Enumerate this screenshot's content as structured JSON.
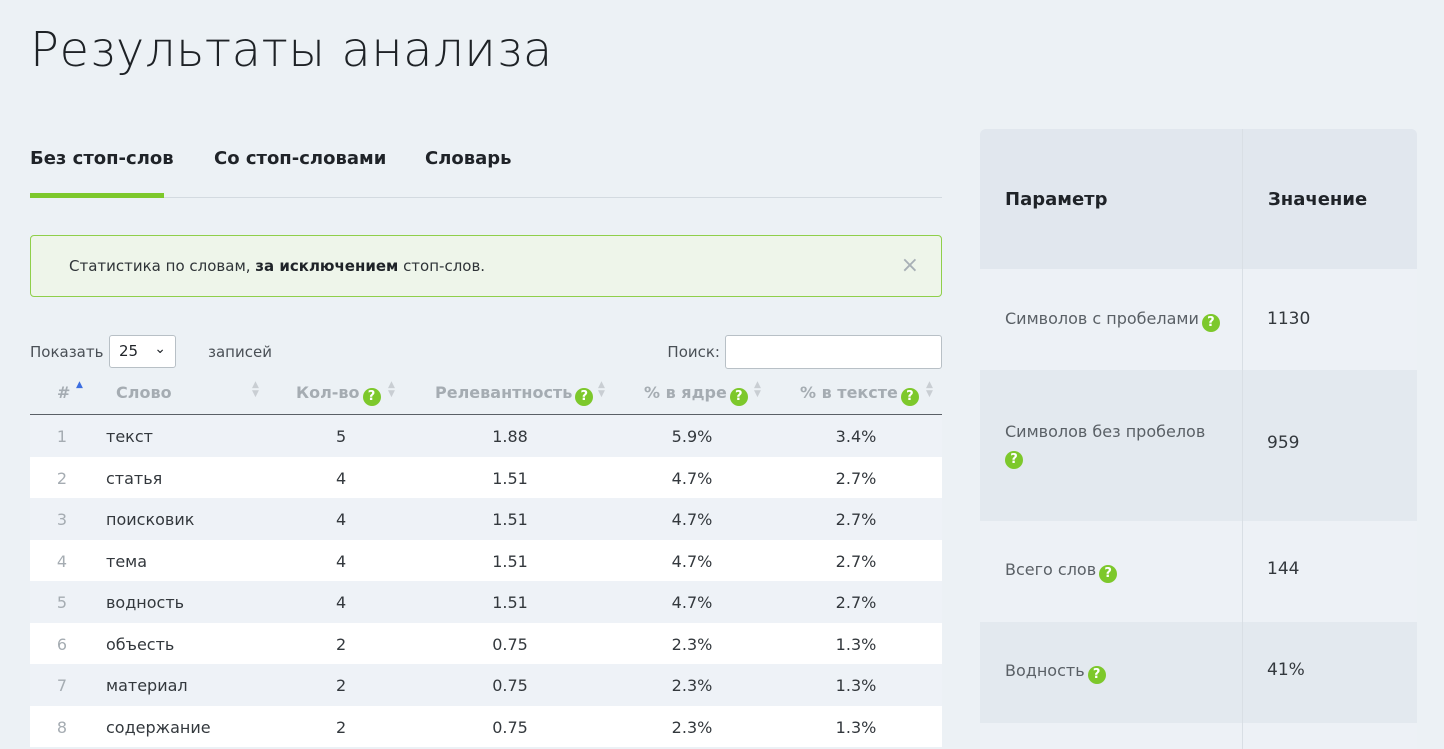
{
  "page_title": "Результаты анализа",
  "tabs": [
    {
      "label": "Без стоп-слов"
    },
    {
      "label": "Со стоп-словами"
    },
    {
      "label": "Словарь"
    }
  ],
  "alert": {
    "prefix": "Статистика по словам, ",
    "bold": "за исключением",
    "suffix": " стоп-слов.",
    "close_icon": "×"
  },
  "controls": {
    "show_label": "Показать",
    "page_size": "25",
    "records_label": "записей",
    "search_label": "Поиск:",
    "search_value": ""
  },
  "table": {
    "columns": [
      "#",
      "Слово",
      "Кол-во",
      "Релевантность",
      "% в ядре",
      "% в тексте"
    ],
    "help_icon": "?",
    "rows": [
      {
        "idx": "1",
        "word": "текст",
        "count": "5",
        "rel": "1.88",
        "core": "5.9%",
        "text": "3.4%"
      },
      {
        "idx": "2",
        "word": "статья",
        "count": "4",
        "rel": "1.51",
        "core": "4.7%",
        "text": "2.7%"
      },
      {
        "idx": "3",
        "word": "поисковик",
        "count": "4",
        "rel": "1.51",
        "core": "4.7%",
        "text": "2.7%"
      },
      {
        "idx": "4",
        "word": "тема",
        "count": "4",
        "rel": "1.51",
        "core": "4.7%",
        "text": "2.7%"
      },
      {
        "idx": "5",
        "word": "водность",
        "count": "4",
        "rel": "1.51",
        "core": "4.7%",
        "text": "2.7%"
      },
      {
        "idx": "6",
        "word": "объесть",
        "count": "2",
        "rel": "0.75",
        "core": "2.3%",
        "text": "1.3%"
      },
      {
        "idx": "7",
        "word": "материал",
        "count": "2",
        "rel": "0.75",
        "core": "2.3%",
        "text": "1.3%"
      },
      {
        "idx": "8",
        "word": "содержание",
        "count": "2",
        "rel": "0.75",
        "core": "2.3%",
        "text": "1.3%"
      }
    ]
  },
  "stats": {
    "header_param": "Параметр",
    "header_value": "Значение",
    "rows": [
      {
        "param": "Символов с пробелами",
        "value": "1130"
      },
      {
        "param": "Символов без пробелов",
        "value": "959"
      },
      {
        "param": "Всего слов",
        "value": "144"
      },
      {
        "param": "Водность",
        "value": "41%"
      }
    ]
  },
  "colors": {
    "accent": "#7dc82b",
    "sort_active": "#3c6ee0"
  }
}
